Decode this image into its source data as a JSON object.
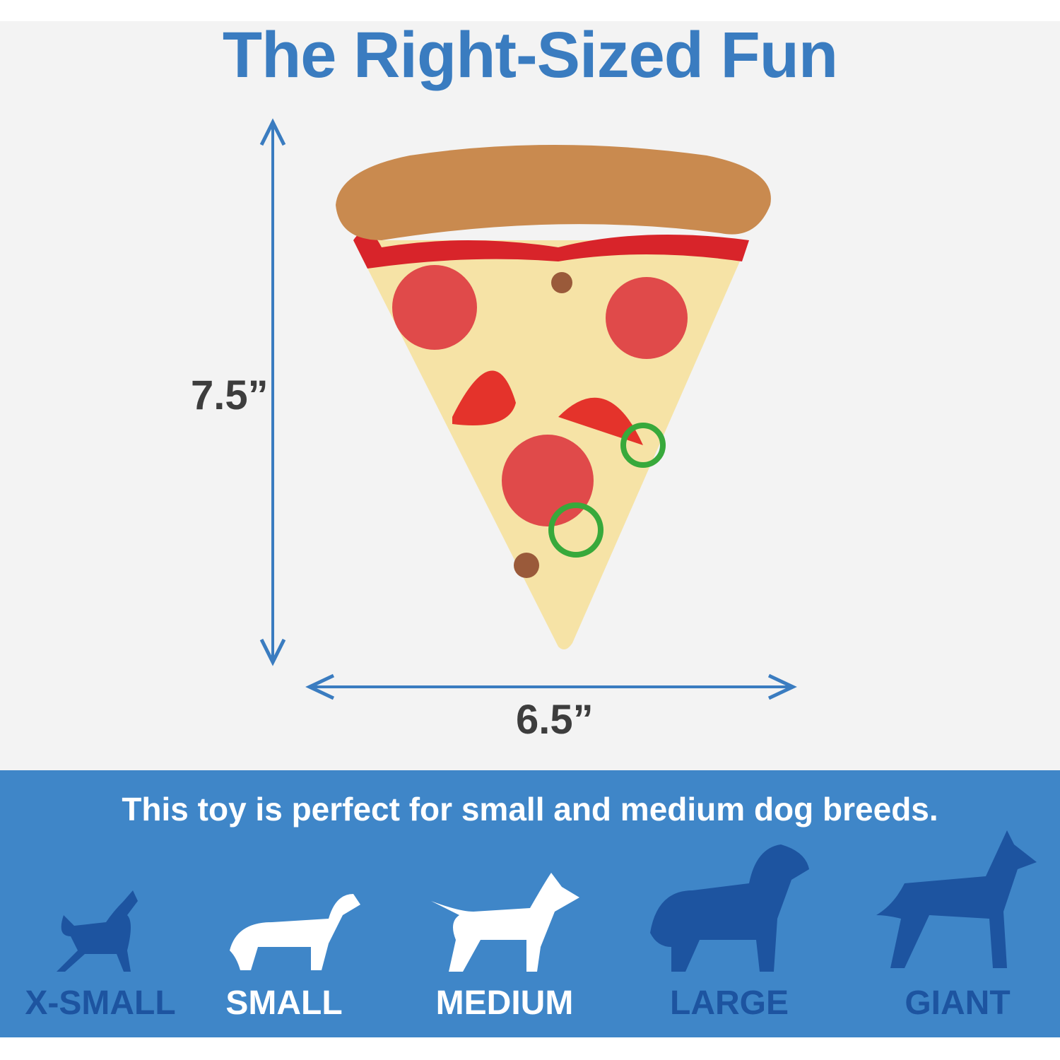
{
  "title": "The Right-Sized Fun",
  "dimensions": {
    "height": "7.5”",
    "width": "6.5”"
  },
  "tagline": "This toy is perfect for small and medium dog breeds.",
  "sizes": [
    {
      "label": "X-SMALL",
      "suitable": false
    },
    {
      "label": "SMALL",
      "suitable": true
    },
    {
      "label": "MEDIUM",
      "suitable": true
    },
    {
      "label": "LARGE",
      "suitable": false
    },
    {
      "label": "GIANT",
      "suitable": false
    }
  ],
  "colors": {
    "accent": "#3a7cc0",
    "band": "#3f86c8",
    "unsuitable": "#1d54a0",
    "suitable": "#ffffff"
  }
}
